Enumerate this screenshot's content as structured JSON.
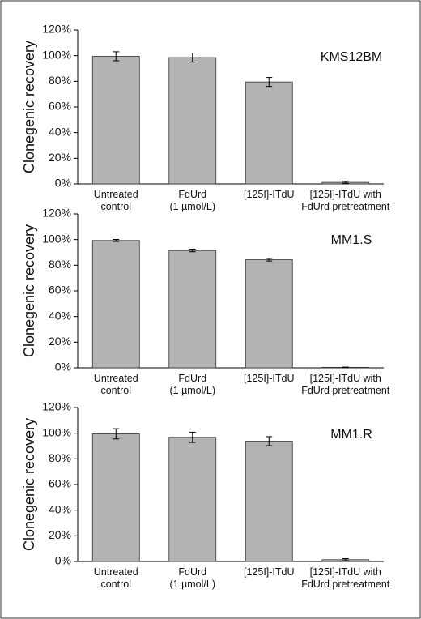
{
  "chart_data": [
    {
      "type": "bar",
      "title": "KMS12BM",
      "ylabel": "Clonegenic recovery",
      "ylim": [
        0,
        120
      ],
      "yticks": [
        "0%",
        "20%",
        "40%",
        "60%",
        "80%",
        "100%",
        "120%"
      ],
      "categories": [
        [
          "Untreated",
          "control"
        ],
        [
          "FdUrd",
          "(1 µmol/L)"
        ],
        [
          "[125I]-ITdU"
        ],
        [
          "[125I]-ITdU with",
          "FdUrd pretreatment"
        ]
      ],
      "values": [
        99.5,
        98.5,
        79.5,
        1.2
      ],
      "errors": [
        3.5,
        3.5,
        3.5,
        0.8
      ],
      "grid": false
    },
    {
      "type": "bar",
      "title": "MM1.S",
      "ylabel": "Clonegenic recovery",
      "ylim": [
        0,
        120
      ],
      "yticks": [
        "0%",
        "20%",
        "40%",
        "60%",
        "80%",
        "100%",
        "120%"
      ],
      "categories": [
        [
          "Untreated",
          "control"
        ],
        [
          "FdUrd",
          "(1 µmol/L)"
        ],
        [
          "[125I]-ITdU"
        ],
        [
          "[125I]-ITdU with",
          "FdUrd pretreatment"
        ]
      ],
      "values": [
        99.3,
        91.5,
        84.3,
        0.4
      ],
      "errors": [
        0.8,
        1.0,
        1.0,
        0.2
      ],
      "grid": false
    },
    {
      "type": "bar",
      "title": "MM1.R",
      "ylabel": "Clonegenic recovery",
      "ylim": [
        0,
        120
      ],
      "yticks": [
        "0%",
        "20%",
        "40%",
        "60%",
        "80%",
        "100%",
        "120%"
      ],
      "categories": [
        [
          "Untreated",
          "control"
        ],
        [
          "FdUrd",
          "(1 µmol/L)"
        ],
        [
          "[125I]-ITdU"
        ],
        [
          "[125I]-ITdU with",
          "FdUrd pretreatment"
        ]
      ],
      "values": [
        99.5,
        96.8,
        93.8,
        1.4
      ],
      "errors": [
        4.0,
        4.0,
        3.5,
        0.8
      ],
      "grid": false
    }
  ]
}
